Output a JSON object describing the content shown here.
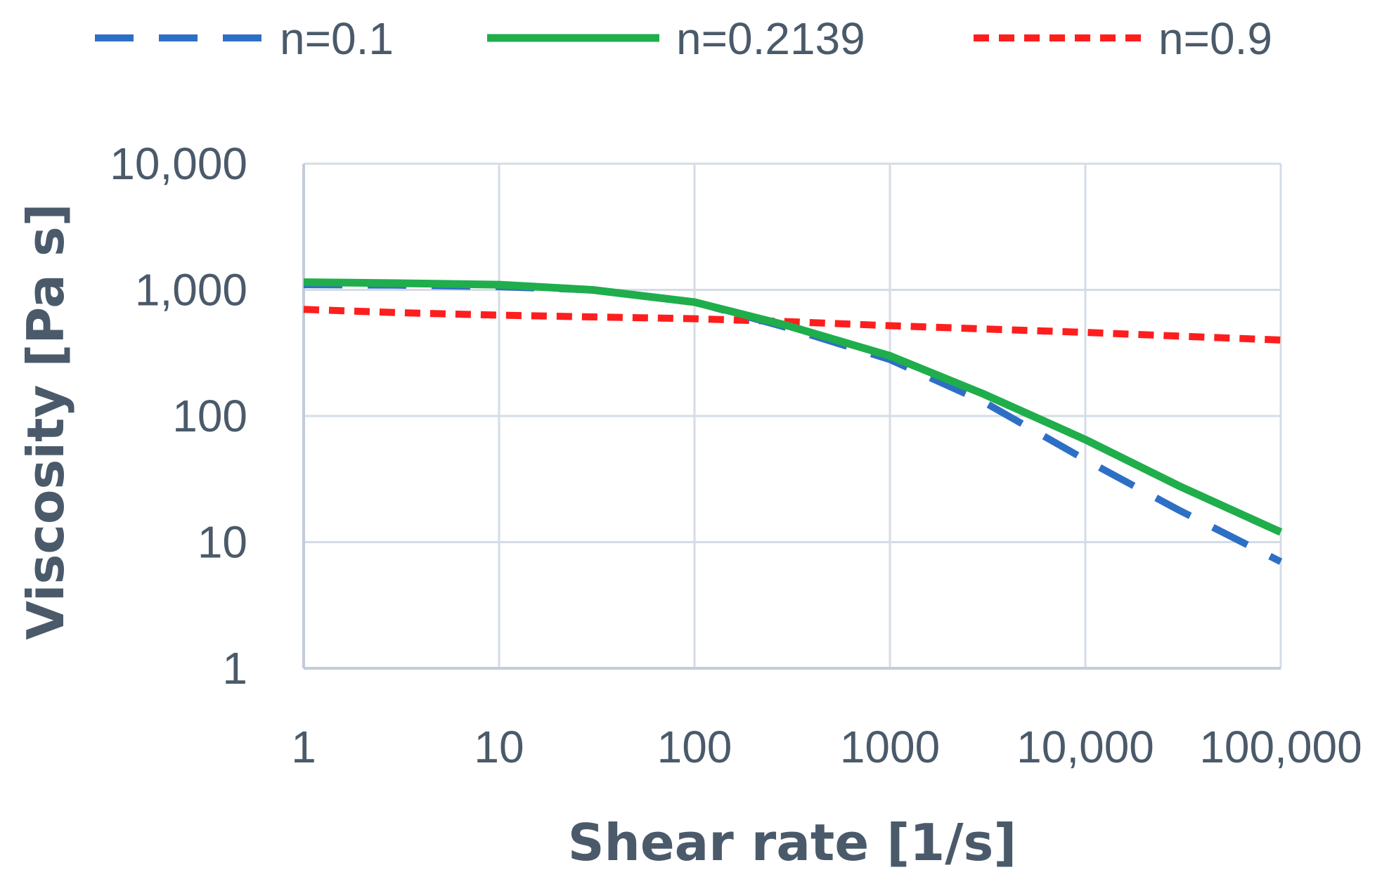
{
  "chart_data": {
    "type": "line",
    "title": "",
    "xlabel": "Shear rate [1/s]",
    "ylabel": "Viscosity [Pa s]",
    "x_scale": "log",
    "y_scale": "log",
    "xlim": [
      1,
      100000
    ],
    "ylim": [
      1,
      10000
    ],
    "x_tick_labels": [
      "1",
      "10",
      "100",
      "1000",
      "10,000",
      "100,000"
    ],
    "y_tick_labels": [
      "1",
      "10",
      "100",
      "1,000",
      "10,000"
    ],
    "grid": true,
    "legend_position": "top",
    "x": [
      1,
      3,
      10,
      30,
      100,
      300,
      1000,
      3000,
      10000,
      30000,
      100000
    ],
    "series": [
      {
        "name": "n=0.1",
        "color": "#2e6fc6",
        "line_style": "dashed",
        "values": [
          1100,
          1090,
          1060,
          1000,
          800,
          500,
          280,
          130,
          45,
          18,
          7
        ]
      },
      {
        "name": "n=0.2139",
        "color": "#1fae4b",
        "line_style": "solid",
        "values": [
          1150,
          1130,
          1100,
          1000,
          800,
          520,
          300,
          150,
          65,
          28,
          12
        ]
      },
      {
        "name": "n=0.9",
        "color": "#ff1e1e",
        "line_style": "dotted",
        "values": [
          700,
          660,
          630,
          610,
          590,
          560,
          520,
          490,
          460,
          430,
          400
        ]
      }
    ]
  },
  "colors": {
    "text": "#4a5a6a",
    "grid": "#d5dce6"
  }
}
